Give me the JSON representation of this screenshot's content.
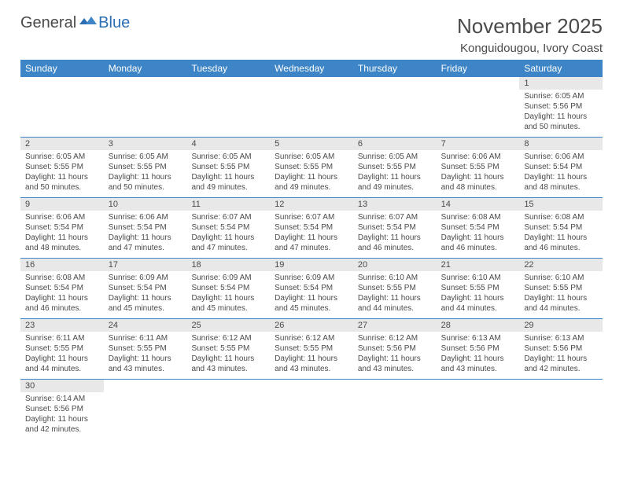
{
  "brand": {
    "word1": "General",
    "word2": "Blue"
  },
  "title": "November 2025",
  "location": "Konguidougou, Ivory Coast",
  "colors": {
    "header_bg": "#3d85c6",
    "header_text": "#ffffff",
    "daynum_bg": "#e8e8e8",
    "divider": "#3d85c6",
    "body_text": "#4a4a4a",
    "page_bg": "#ffffff"
  },
  "day_names": [
    "Sunday",
    "Monday",
    "Tuesday",
    "Wednesday",
    "Thursday",
    "Friday",
    "Saturday"
  ],
  "weeks": [
    [
      {
        "n": "",
        "sr": "",
        "ss": "",
        "dl": ""
      },
      {
        "n": "",
        "sr": "",
        "ss": "",
        "dl": ""
      },
      {
        "n": "",
        "sr": "",
        "ss": "",
        "dl": ""
      },
      {
        "n": "",
        "sr": "",
        "ss": "",
        "dl": ""
      },
      {
        "n": "",
        "sr": "",
        "ss": "",
        "dl": ""
      },
      {
        "n": "",
        "sr": "",
        "ss": "",
        "dl": ""
      },
      {
        "n": "1",
        "sr": "6:05 AM",
        "ss": "5:56 PM",
        "dl": "11 hours and 50 minutes."
      }
    ],
    [
      {
        "n": "2",
        "sr": "6:05 AM",
        "ss": "5:55 PM",
        "dl": "11 hours and 50 minutes."
      },
      {
        "n": "3",
        "sr": "6:05 AM",
        "ss": "5:55 PM",
        "dl": "11 hours and 50 minutes."
      },
      {
        "n": "4",
        "sr": "6:05 AM",
        "ss": "5:55 PM",
        "dl": "11 hours and 49 minutes."
      },
      {
        "n": "5",
        "sr": "6:05 AM",
        "ss": "5:55 PM",
        "dl": "11 hours and 49 minutes."
      },
      {
        "n": "6",
        "sr": "6:05 AM",
        "ss": "5:55 PM",
        "dl": "11 hours and 49 minutes."
      },
      {
        "n": "7",
        "sr": "6:06 AM",
        "ss": "5:55 PM",
        "dl": "11 hours and 48 minutes."
      },
      {
        "n": "8",
        "sr": "6:06 AM",
        "ss": "5:54 PM",
        "dl": "11 hours and 48 minutes."
      }
    ],
    [
      {
        "n": "9",
        "sr": "6:06 AM",
        "ss": "5:54 PM",
        "dl": "11 hours and 48 minutes."
      },
      {
        "n": "10",
        "sr": "6:06 AM",
        "ss": "5:54 PM",
        "dl": "11 hours and 47 minutes."
      },
      {
        "n": "11",
        "sr": "6:07 AM",
        "ss": "5:54 PM",
        "dl": "11 hours and 47 minutes."
      },
      {
        "n": "12",
        "sr": "6:07 AM",
        "ss": "5:54 PM",
        "dl": "11 hours and 47 minutes."
      },
      {
        "n": "13",
        "sr": "6:07 AM",
        "ss": "5:54 PM",
        "dl": "11 hours and 46 minutes."
      },
      {
        "n": "14",
        "sr": "6:08 AM",
        "ss": "5:54 PM",
        "dl": "11 hours and 46 minutes."
      },
      {
        "n": "15",
        "sr": "6:08 AM",
        "ss": "5:54 PM",
        "dl": "11 hours and 46 minutes."
      }
    ],
    [
      {
        "n": "16",
        "sr": "6:08 AM",
        "ss": "5:54 PM",
        "dl": "11 hours and 46 minutes."
      },
      {
        "n": "17",
        "sr": "6:09 AM",
        "ss": "5:54 PM",
        "dl": "11 hours and 45 minutes."
      },
      {
        "n": "18",
        "sr": "6:09 AM",
        "ss": "5:54 PM",
        "dl": "11 hours and 45 minutes."
      },
      {
        "n": "19",
        "sr": "6:09 AM",
        "ss": "5:54 PM",
        "dl": "11 hours and 45 minutes."
      },
      {
        "n": "20",
        "sr": "6:10 AM",
        "ss": "5:55 PM",
        "dl": "11 hours and 44 minutes."
      },
      {
        "n": "21",
        "sr": "6:10 AM",
        "ss": "5:55 PM",
        "dl": "11 hours and 44 minutes."
      },
      {
        "n": "22",
        "sr": "6:10 AM",
        "ss": "5:55 PM",
        "dl": "11 hours and 44 minutes."
      }
    ],
    [
      {
        "n": "23",
        "sr": "6:11 AM",
        "ss": "5:55 PM",
        "dl": "11 hours and 44 minutes."
      },
      {
        "n": "24",
        "sr": "6:11 AM",
        "ss": "5:55 PM",
        "dl": "11 hours and 43 minutes."
      },
      {
        "n": "25",
        "sr": "6:12 AM",
        "ss": "5:55 PM",
        "dl": "11 hours and 43 minutes."
      },
      {
        "n": "26",
        "sr": "6:12 AM",
        "ss": "5:55 PM",
        "dl": "11 hours and 43 minutes."
      },
      {
        "n": "27",
        "sr": "6:12 AM",
        "ss": "5:56 PM",
        "dl": "11 hours and 43 minutes."
      },
      {
        "n": "28",
        "sr": "6:13 AM",
        "ss": "5:56 PM",
        "dl": "11 hours and 43 minutes."
      },
      {
        "n": "29",
        "sr": "6:13 AM",
        "ss": "5:56 PM",
        "dl": "11 hours and 42 minutes."
      }
    ],
    [
      {
        "n": "30",
        "sr": "6:14 AM",
        "ss": "5:56 PM",
        "dl": "11 hours and 42 minutes."
      },
      {
        "n": "",
        "sr": "",
        "ss": "",
        "dl": ""
      },
      {
        "n": "",
        "sr": "",
        "ss": "",
        "dl": ""
      },
      {
        "n": "",
        "sr": "",
        "ss": "",
        "dl": ""
      },
      {
        "n": "",
        "sr": "",
        "ss": "",
        "dl": ""
      },
      {
        "n": "",
        "sr": "",
        "ss": "",
        "dl": ""
      },
      {
        "n": "",
        "sr": "",
        "ss": "",
        "dl": ""
      }
    ]
  ],
  "labels": {
    "sunrise": "Sunrise: ",
    "sunset": "Sunset: ",
    "daylight": "Daylight: "
  }
}
